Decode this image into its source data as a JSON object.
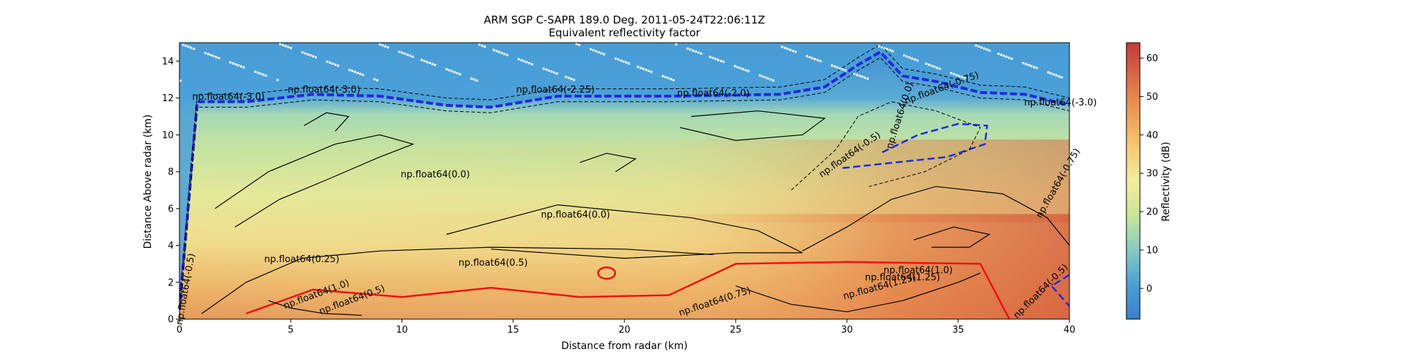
{
  "chart_data": [
    {
      "type": "heatmap",
      "title_line1": "ARM SGP C-SAPR 189.0 Deg. 2011-05-24T22:06:11Z",
      "title_line2": "Equivalent reflectivity factor",
      "xlabel": "Distance from radar (km)",
      "ylabel": "Distance Above radar  (km)",
      "xlim": [
        0,
        40
      ],
      "ylim": [
        0,
        15
      ],
      "xticks": [
        0,
        5,
        10,
        15,
        20,
        25,
        30,
        35,
        40
      ],
      "yticks": [
        0,
        2,
        4,
        6,
        8,
        10,
        12,
        14
      ],
      "grid": false,
      "colorbar": {
        "label": "Reflectivity (dB)",
        "range": [
          -8,
          64
        ],
        "ticks": [
          0,
          10,
          20,
          30,
          40,
          50,
          60
        ],
        "colormap": [
          "#3a7fc8",
          "#4aa0d6",
          "#86cbc0",
          "#c9e59a",
          "#f3ee9d",
          "#f6c873",
          "#ee9a55",
          "#dc6a45",
          "#c33a3a"
        ]
      },
      "reflectivity_profile": [
        {
          "height_km": 0.5,
          "dbz": 45
        },
        {
          "height_km": 2.5,
          "dbz": 38
        },
        {
          "height_km": 5,
          "dbz": 27
        },
        {
          "height_km": 8,
          "dbz": 22
        },
        {
          "height_km": 11,
          "dbz": 14
        },
        {
          "height_km": 13.5,
          "dbz": 6
        }
      ],
      "contour_labels": [
        {
          "text": "np.float64(-3.0)",
          "x": 6.5,
          "y": 12.3,
          "rot": 0
        },
        {
          "text": "np.float64(-3.0)",
          "x": 2.2,
          "y": 11.9,
          "rot": 0
        },
        {
          "text": "np.float64(-2.25)",
          "x": 16.9,
          "y": 12.3,
          "rot": 0
        },
        {
          "text": "np.float64(-2.0)",
          "x": 24,
          "y": 12.1,
          "rot": 0
        },
        {
          "text": "np.float64(0.0)",
          "x": 11.5,
          "y": 7.7,
          "rot": 0
        },
        {
          "text": "np.float64(0.0)",
          "x": 17.8,
          "y": 5.5,
          "rot": 0
        },
        {
          "text": "np.float64(0.0)",
          "x": 32.5,
          "y": 11,
          "rot": -72
        },
        {
          "text": "np.float64(-0.75)",
          "x": 34.3,
          "y": 12.4,
          "rot": -20
        },
        {
          "text": "np.float64(-0.5)",
          "x": 30.2,
          "y": 8.8,
          "rot": -35
        },
        {
          "text": "np.float64(0.25)",
          "x": 5.5,
          "y": 3.1,
          "rot": 0
        },
        {
          "text": "np.float64(0.5)",
          "x": 14.1,
          "y": 2.9,
          "rot": 0
        },
        {
          "text": "np.float64(0.5)",
          "x": 7.8,
          "y": 0.9,
          "rot": -20
        },
        {
          "text": "np.float64(1.0)",
          "x": 6.2,
          "y": 1.2,
          "rot": -20
        },
        {
          "text": "np.float64(0.75)",
          "x": 24.1,
          "y": 0.8,
          "rot": -18
        },
        {
          "text": "np.float64(1.0)",
          "x": 33.2,
          "y": 2.5,
          "rot": 0
        },
        {
          "text": "np.float64(1.25)",
          "x": 32.5,
          "y": 2.1,
          "rot": 0
        },
        {
          "text": "np.float64(1.25)",
          "x": 31.5,
          "y": 1.6,
          "rot": -15
        },
        {
          "text": "np.float64(-0.5)",
          "x": 0.4,
          "y": 1.6,
          "rot": -80
        },
        {
          "text": "np.float64(-0.5)",
          "x": 38.8,
          "y": 1.4,
          "rot": -45
        },
        {
          "text": "np.float64(-3.0)",
          "x": 39.6,
          "y": 11.6,
          "rot": 0
        },
        {
          "text": "np.float64(-0.75)",
          "x": 39.6,
          "y": 7.3,
          "rot": -60
        }
      ]
    }
  ]
}
